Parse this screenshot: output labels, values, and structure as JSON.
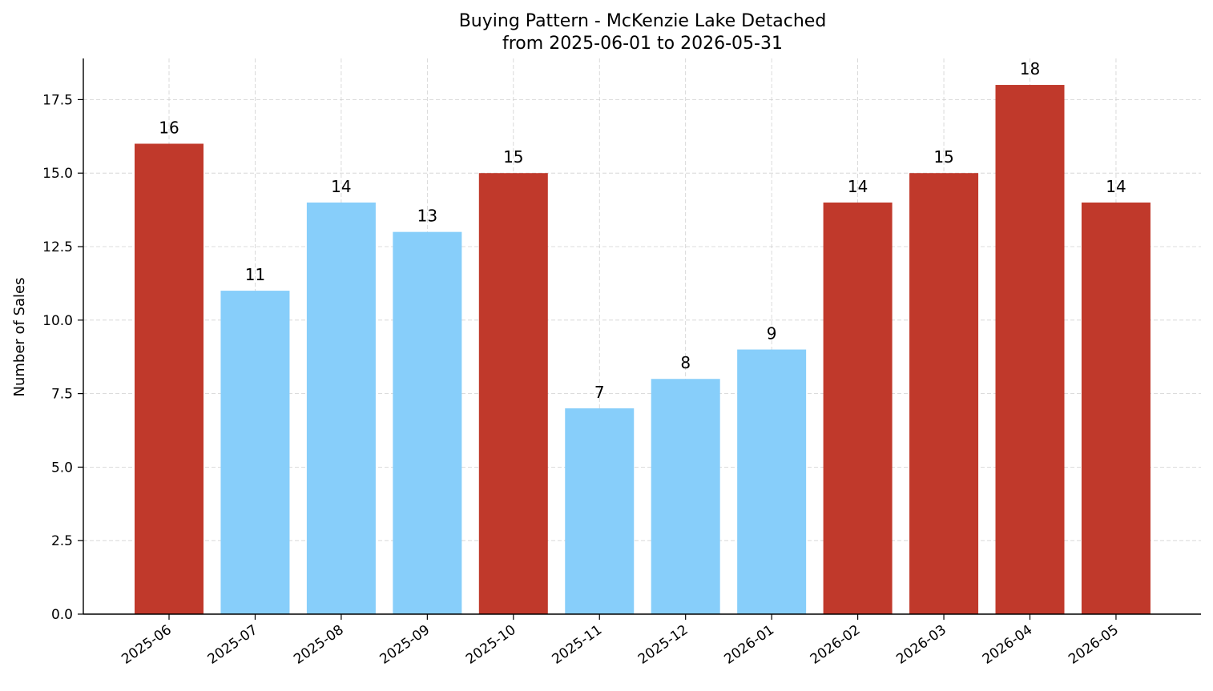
{
  "chart_data": {
    "type": "bar",
    "title": "Buying Pattern - McKenzie Lake Detached",
    "subtitle": "from 2025-06-01 to 2026-05-31",
    "xlabel": "",
    "ylabel": "Number of Sales",
    "categories": [
      "2025-06",
      "2025-07",
      "2025-08",
      "2025-09",
      "2025-10",
      "2025-11",
      "2025-12",
      "2026-01",
      "2026-02",
      "2026-03",
      "2026-04",
      "2026-05"
    ],
    "values": [
      16,
      11,
      14,
      13,
      15,
      7,
      8,
      9,
      14,
      15,
      18,
      14
    ],
    "bar_colors": [
      "#c0392b",
      "#87cefa",
      "#87cefa",
      "#87cefa",
      "#c0392b",
      "#87cefa",
      "#87cefa",
      "#87cefa",
      "#c0392b",
      "#c0392b",
      "#c0392b",
      "#c0392b"
    ],
    "y_ticks": [
      "0.0",
      "2.5",
      "5.0",
      "7.5",
      "10.0",
      "12.5",
      "15.0",
      "17.5"
    ],
    "ylim": [
      0,
      18.9
    ],
    "grid": true,
    "legend": "none"
  }
}
